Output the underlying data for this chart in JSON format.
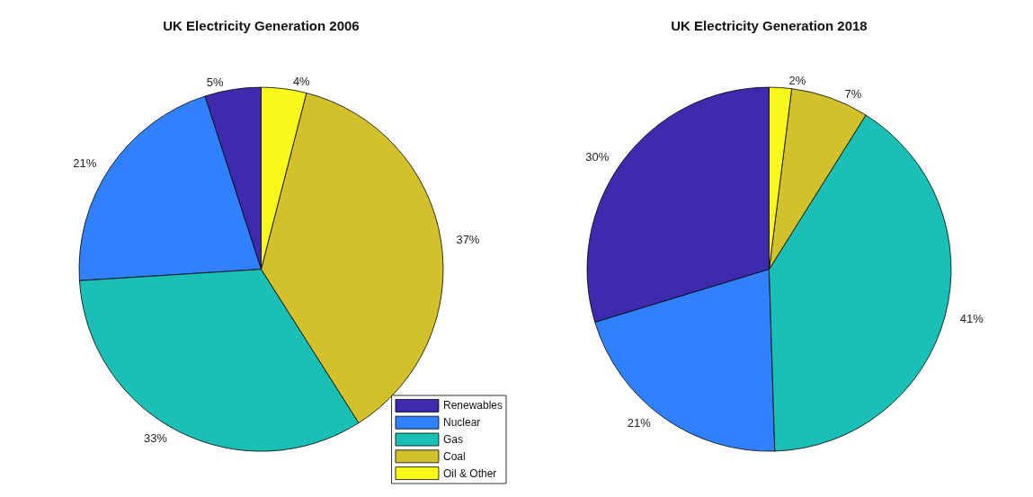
{
  "chart_data": [
    {
      "type": "pie",
      "title": "UK Electricity Generation 2006",
      "categories": [
        "Renewables",
        "Nuclear",
        "Gas",
        "Coal",
        "Oil & Other"
      ],
      "values": [
        5,
        21,
        33,
        37,
        4
      ],
      "value_labels": [
        "5%",
        "21%",
        "33%",
        "37%",
        "4%"
      ],
      "colors": [
        "#3d2aad",
        "#3080ff",
        "#1abfb6",
        "#d2c12a",
        "#f8f81a"
      ],
      "legend": "bottom right"
    },
    {
      "type": "pie",
      "title": "UK Electricity Generation 2018",
      "categories": [
        null,
        null,
        null,
        null,
        null
      ],
      "values": [
        30,
        21,
        41,
        7,
        2
      ],
      "value_labels": [
        "30%",
        "21%",
        "41%",
        "7%",
        "2%"
      ],
      "colors": [
        "#3d2aad",
        "#3080ff",
        "#1abfb6",
        "#d2c12a",
        "#f8f81a"
      ]
    }
  ]
}
